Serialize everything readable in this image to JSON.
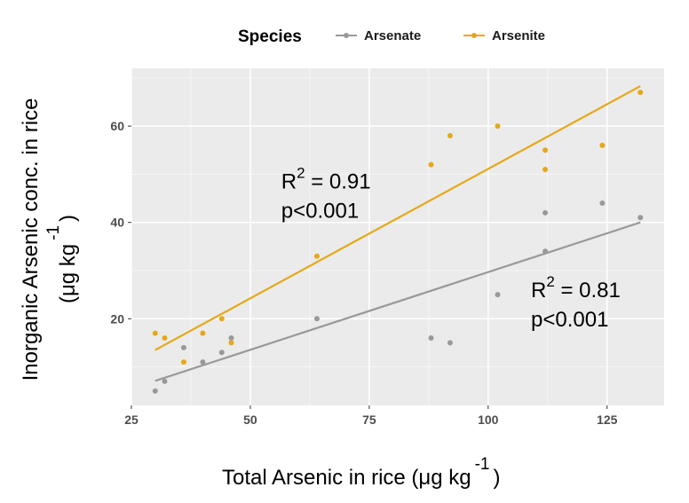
{
  "chart_data": {
    "type": "scatter",
    "xlabel": "Total Arsenic in rice (μg kg",
    "xlabel_sup": "-1",
    "xlabel_close": ")",
    "ylabel_line1": "Inorganic Arsenic conc. in rice",
    "ylabel_line2": "(μg kg",
    "ylabel_sup": "-1",
    "ylabel_close": ")",
    "xlim": [
      25,
      137
    ],
    "ylim": [
      2,
      72
    ],
    "xticks": [
      25,
      50,
      75,
      100,
      125
    ],
    "yticks": [
      20,
      40,
      60
    ],
    "grid": true,
    "legend": {
      "title": "Species",
      "position": "top"
    },
    "series": [
      {
        "name": "Arsenate",
        "color": "#999999",
        "points": [
          {
            "x": 30,
            "y": 5
          },
          {
            "x": 32,
            "y": 7
          },
          {
            "x": 36,
            "y": 14
          },
          {
            "x": 40,
            "y": 11
          },
          {
            "x": 44,
            "y": 13
          },
          {
            "x": 46,
            "y": 16
          },
          {
            "x": 64,
            "y": 20
          },
          {
            "x": 88,
            "y": 16
          },
          {
            "x": 92,
            "y": 15
          },
          {
            "x": 102,
            "y": 25
          },
          {
            "x": 112,
            "y": 42
          },
          {
            "x": 112,
            "y": 34
          },
          {
            "x": 124,
            "y": 44
          },
          {
            "x": 132,
            "y": 41
          }
        ],
        "fit": [
          {
            "x": 30,
            "y": 7.1
          },
          {
            "x": 132,
            "y": 40
          }
        ]
      },
      {
        "name": "Arsenite",
        "color": "#E6A817",
        "points": [
          {
            "x": 30,
            "y": 17
          },
          {
            "x": 32,
            "y": 16
          },
          {
            "x": 36,
            "y": 11
          },
          {
            "x": 40,
            "y": 17
          },
          {
            "x": 44,
            "y": 20
          },
          {
            "x": 46,
            "y": 15
          },
          {
            "x": 64,
            "y": 33
          },
          {
            "x": 88,
            "y": 52
          },
          {
            "x": 92,
            "y": 58
          },
          {
            "x": 102,
            "y": 60
          },
          {
            "x": 112,
            "y": 55
          },
          {
            "x": 112,
            "y": 51
          },
          {
            "x": 124,
            "y": 56
          },
          {
            "x": 132,
            "y": 67
          }
        ],
        "fit": [
          {
            "x": 30,
            "y": 13.5
          },
          {
            "x": 132,
            "y": 68.3
          }
        ]
      }
    ],
    "annotations": [
      {
        "r_label": "R",
        "r_sup": "2",
        "r_value": " = 0.91",
        "p_text": "p<0.001",
        "anchor": {
          "x": 56.5,
          "y": 47
        }
      },
      {
        "r_label": "R",
        "r_sup": "2",
        "r_value": " = 0.81",
        "p_text": "p<0.001",
        "anchor": {
          "x": 109,
          "y": 24.5
        }
      }
    ]
  }
}
